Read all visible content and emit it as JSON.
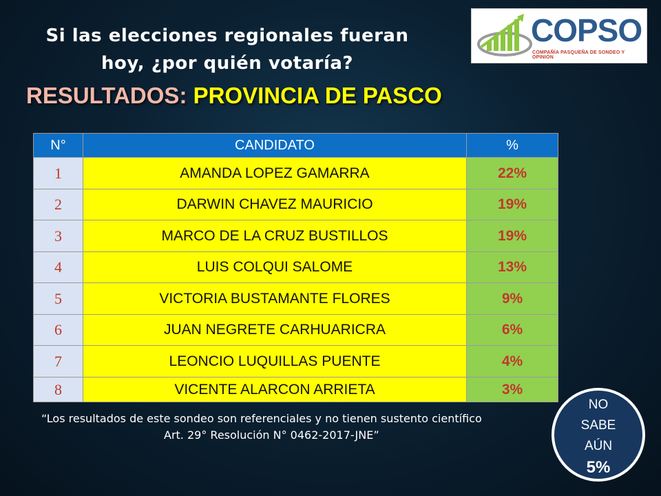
{
  "header": {
    "title_line1": "Si las elecciones regionales  fueran",
    "title_line2": "hoy, ¿por quién votaría?",
    "subtitle_label": "RESULTADOS: ",
    "subtitle_value": "PROVINCIA DE PASCO"
  },
  "logo": {
    "name": "COPSO",
    "tagline": "COMPAÑÍA PASQUEÑA DE SONDEO Y OPINIÓN"
  },
  "table": {
    "headers": [
      "N°",
      "CANDIDATO",
      "%"
    ],
    "rows": [
      {
        "num": "1",
        "name": "AMANDA LOPEZ GAMARRA",
        "pct": "22%"
      },
      {
        "num": "2",
        "name": "DARWIN  CHAVEZ MAURICIO",
        "pct": "19%"
      },
      {
        "num": "3",
        "name": "MARCO  DE LA CRUZ BUSTILLOS",
        "pct": "19%"
      },
      {
        "num": "4",
        "name": "LUIS COLQUI SALOME",
        "pct": "13%"
      },
      {
        "num": "5",
        "name": "VICTORIA BUSTAMANTE FLORES",
        "pct": "9%"
      },
      {
        "num": "6",
        "name": "JUAN  NEGRETE CARHUARICRA",
        "pct": "6%"
      },
      {
        "num": "7",
        "name": "LEONCIO  LUQUILLAS PUENTE",
        "pct": "4%"
      },
      {
        "num": "8",
        "name": "VICENTE  ALARCON ARRIETA",
        "pct": "3%"
      }
    ]
  },
  "note": {
    "line1": "“Los resultados de este sondeo son referenciales y no tienen sustento científico",
    "line2": "Art. 29° Resolución N° 0462-2017-JNE”"
  },
  "badge": {
    "line1": "NO",
    "line2": "SABE",
    "line3": "AÚN",
    "value": "5%"
  },
  "colors": {
    "header_bg": "#0d6fc6",
    "name_bg": "#ffff00",
    "pct_bg": "#92d050",
    "num_bg": "#dae3f3",
    "accent_red": "#c0392b",
    "badge_bg": "#17375e"
  },
  "icons": [
    "copso-growth-arrow-icon"
  ]
}
